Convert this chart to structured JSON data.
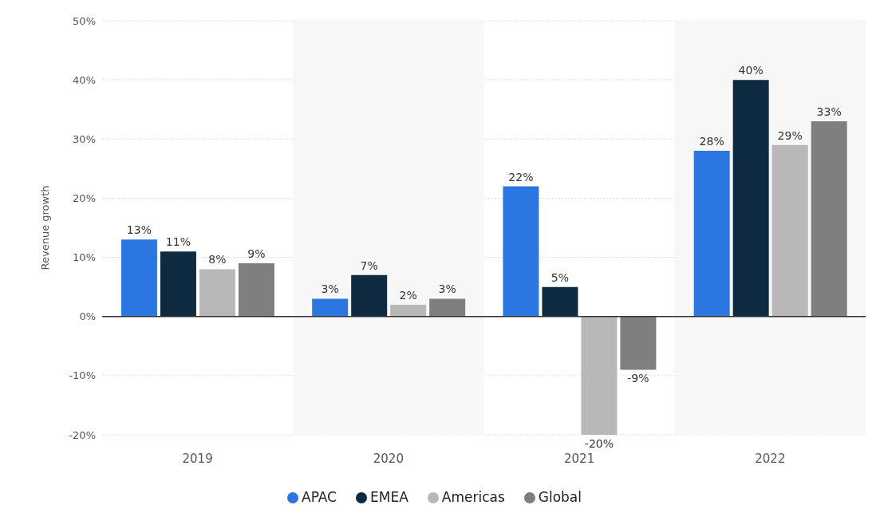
{
  "chart_data": {
    "type": "bar",
    "ylabel": "Revenue growth",
    "categories": [
      "2019",
      "2020",
      "2021",
      "2022"
    ],
    "series": [
      {
        "name": "APAC",
        "color": "#2b76e0",
        "values": [
          13,
          3,
          22,
          28
        ],
        "value_labels": [
          "13%",
          "3%",
          "22%",
          "28%"
        ]
      },
      {
        "name": "EMEA",
        "color": "#0e2a40",
        "values": [
          11,
          7,
          5,
          40
        ],
        "value_labels": [
          "11%",
          "7%",
          "5%",
          "40%"
        ]
      },
      {
        "name": "Americas",
        "color": "#b8b8b8",
        "values": [
          8,
          2,
          -20,
          29
        ],
        "value_labels": [
          "8%",
          "2%",
          "-20%",
          "29%"
        ]
      },
      {
        "name": "Global",
        "color": "#7f7f7f",
        "values": [
          9,
          3,
          -9,
          33
        ],
        "value_labels": [
          "9%",
          "3%",
          "-9%",
          "33%"
        ]
      }
    ],
    "ylim": [
      -20,
      50
    ],
    "yticks": [
      {
        "value": -20,
        "label": "-20%"
      },
      {
        "value": -10,
        "label": "-10%"
      },
      {
        "value": 0,
        "label": "0%"
      },
      {
        "value": 10,
        "label": "10%"
      },
      {
        "value": 20,
        "label": "20%"
      },
      {
        "value": 30,
        "label": "30%"
      },
      {
        "value": 40,
        "label": "40%"
      },
      {
        "value": 50,
        "label": "50%"
      }
    ],
    "bands": [
      {
        "axis": "x",
        "from": "2020",
        "to": "2020",
        "color": "#f7f7f7"
      },
      {
        "axis": "x",
        "from": "2022",
        "to": "2022",
        "color": "#f7f7f7"
      }
    ],
    "grid": "y",
    "legend": "bottom"
  }
}
